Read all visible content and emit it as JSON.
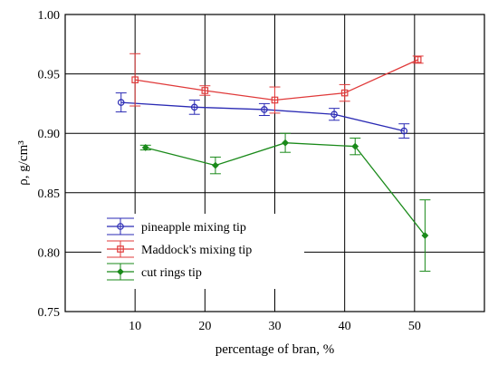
{
  "chart_data": {
    "type": "line",
    "xlabel": "percentage of bran, %",
    "ylabel": "ρ, g/cm³",
    "xlim": [
      0,
      60
    ],
    "ylim": [
      0.75,
      1.0
    ],
    "x_ticks": [
      10,
      20,
      30,
      40,
      50
    ],
    "x_tick_labels": [
      "10",
      "20",
      "30",
      "40",
      "50"
    ],
    "y_ticks": [
      0.75,
      0.8,
      0.85,
      0.9,
      0.95,
      1.0
    ],
    "y_tick_labels": [
      "0.75",
      "0.80",
      "0.85",
      "0.90",
      "0.95",
      "1.00"
    ],
    "grid": true,
    "legend_position": "bottom-left",
    "series": [
      {
        "name": "pineapple mixing tip",
        "color": "#2a2ab4",
        "marker": "circle",
        "x": [
          8,
          18.5,
          28.5,
          38.5,
          48.5
        ],
        "y": [
          0.926,
          0.922,
          0.92,
          0.916,
          0.902
        ],
        "err": [
          0.008,
          0.006,
          0.005,
          0.005,
          0.006
        ]
      },
      {
        "name": "Maddock's mixing tip",
        "color": "#e03a3a",
        "marker": "square",
        "x": [
          10,
          20,
          30,
          40,
          50.5
        ],
        "y": [
          0.945,
          0.936,
          0.928,
          0.934,
          0.962
        ],
        "err": [
          0.022,
          0.004,
          0.011,
          0.007,
          0.003
        ]
      },
      {
        "name": "cut rings tip",
        "color": "#1a8a1a",
        "marker": "diamond",
        "x": [
          11.5,
          21.5,
          31.5,
          41.5,
          51.5
        ],
        "y": [
          0.888,
          0.873,
          0.892,
          0.889,
          0.814
        ],
        "err": [
          0.002,
          0.007,
          0.008,
          0.007,
          0.03
        ]
      }
    ]
  }
}
